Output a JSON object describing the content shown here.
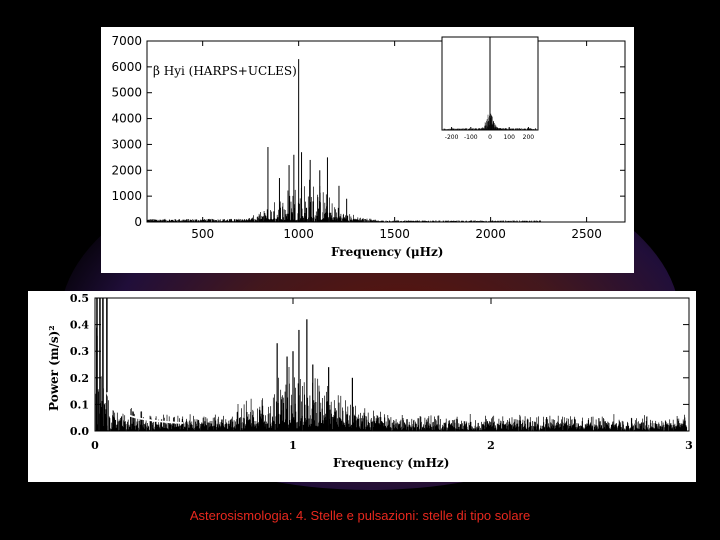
{
  "caption": "Asterosismologia: 4. Stelle e pulsazioni: stelle di tipo solare",
  "chart_data": [
    {
      "type": "line",
      "title": "β Hyi (HARPS+UCLES)",
      "xlabel": "Frequency (μHz)",
      "ylabel": "",
      "xlim": [
        210,
        2700
      ],
      "ylim": [
        0,
        7000
      ],
      "xticks": [
        "500",
        "1000",
        "1500",
        "2000",
        "2500"
      ],
      "yticks": [
        "0",
        "1000",
        "2000",
        "3000",
        "4000",
        "5000",
        "6000",
        "7000"
      ],
      "peaks": [
        {
          "x": 840,
          "y": 2900
        },
        {
          "x": 900,
          "y": 1700
        },
        {
          "x": 950,
          "y": 2200
        },
        {
          "x": 975,
          "y": 2600
        },
        {
          "x": 1000,
          "y": 6300
        },
        {
          "x": 1015,
          "y": 2700
        },
        {
          "x": 1060,
          "y": 2400
        },
        {
          "x": 1110,
          "y": 2000
        },
        {
          "x": 1150,
          "y": 2500
        },
        {
          "x": 1210,
          "y": 1400
        },
        {
          "x": 1250,
          "y": 900
        }
      ],
      "inset": {
        "xlim": [
          -250,
          250
        ],
        "xticks": [
          "-200",
          "-100",
          "0",
          "100",
          "200"
        ],
        "peak": {
          "x": 0,
          "y": 1.0
        }
      }
    },
    {
      "type": "line",
      "title": "",
      "xlabel": "Frequency (mHz)",
      "ylabel": "Power (m/s)²",
      "xlim": [
        0,
        3
      ],
      "ylim": [
        0,
        0.5
      ],
      "xticks": [
        "0",
        "1",
        "2",
        "3"
      ],
      "yticks": [
        "0.0",
        "0.1",
        "0.2",
        "0.3",
        "0.4",
        "0.5"
      ],
      "peaks": [
        {
          "x": 0.92,
          "y": 0.33
        },
        {
          "x": 0.97,
          "y": 0.28
        },
        {
          "x": 1.0,
          "y": 0.3
        },
        {
          "x": 1.03,
          "y": 0.38
        },
        {
          "x": 1.07,
          "y": 0.42
        },
        {
          "x": 1.1,
          "y": 0.25
        },
        {
          "x": 1.18,
          "y": 0.24
        },
        {
          "x": 1.3,
          "y": 0.2
        }
      ]
    }
  ]
}
